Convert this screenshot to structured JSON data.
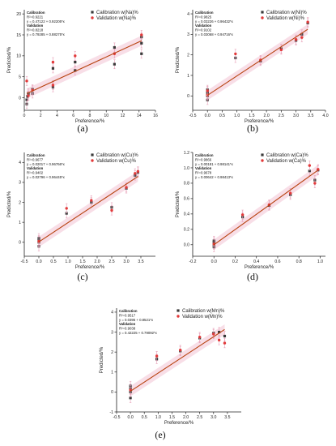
{
  "colors": {
    "calibration": "#3a3a3a",
    "validation": "#e23a3a",
    "fit_line": "#b7410e",
    "band": "#f3c2d4",
    "error_bar": "#e8a0b8"
  },
  "chart_data": [
    {
      "id": "a",
      "type": "scatter",
      "panel_label": "(a)",
      "xlabel": "Preference/%",
      "ylabel": "Predicted/%",
      "xlim": [
        0,
        16
      ],
      "ylim": [
        -3,
        21
      ],
      "xticks": [
        0,
        2,
        4,
        6,
        8,
        10,
        12,
        14,
        16
      ],
      "yticks": [
        0,
        5,
        10,
        15,
        20
      ],
      "legend_position": "top-right",
      "series": [
        {
          "name": "Calibration w(Na)%",
          "role": "calibration",
          "points": [
            [
              0.3,
              -1.5
            ],
            [
              0.3,
              -0.5
            ],
            [
              0.4,
              0.3
            ],
            [
              0.5,
              1.0
            ],
            [
              1.0,
              1.0
            ],
            [
              1.0,
              2.0
            ],
            [
              3.5,
              2.5
            ],
            [
              3.5,
              7.0
            ],
            [
              6.2,
              6.5
            ],
            [
              6.2,
              8.5
            ],
            [
              11,
              8.0
            ],
            [
              11,
              12.0
            ],
            [
              14.3,
              10.5
            ],
            [
              14.3,
              13.0
            ],
            [
              14.3,
              14.5
            ]
          ]
        },
        {
          "name": "Validation w(Na)%",
          "role": "validation",
          "points": [
            [
              0.3,
              4.0
            ],
            [
              0.5,
              0.5
            ],
            [
              1.0,
              1.8
            ],
            [
              3.5,
              3.0
            ],
            [
              3.5,
              8.5
            ],
            [
              6.2,
              10.0
            ],
            [
              11,
              10.5
            ],
            [
              14.3,
              15.0
            ]
          ]
        }
      ],
      "fit_line": [
        [
          0.3,
          1.0
        ],
        [
          14.3,
          13.6
        ]
      ],
      "annotations": [
        {
          "text": "Calibration",
          "bold": true
        },
        {
          "text": "R²=0.9221"
        },
        {
          "text": "y = 0.47122 + 0.92205*x"
        },
        {
          "text": "Validation",
          "bold": true
        },
        {
          "text": "R²=0.8218"
        },
        {
          "text": "y = 0.79285 + 0.88275*x"
        }
      ]
    },
    {
      "id": "b",
      "type": "scatter",
      "panel_label": "(b)",
      "xlabel": "Preference/%",
      "ylabel": "Predicted/%",
      "xlim": [
        -0.5,
        4
      ],
      "ylim": [
        -0.7,
        4.2
      ],
      "xticks": [
        -0.5,
        0.0,
        0.5,
        1.0,
        1.5,
        2.0,
        2.5,
        3.0,
        3.5,
        4.0
      ],
      "yticks": [
        0,
        1,
        2,
        3,
        4
      ],
      "legend_position": "top-right",
      "series": [
        {
          "name": "Calibration w(Ni)%",
          "role": "calibration",
          "points": [
            [
              0,
              -0.2
            ],
            [
              0,
              0
            ],
            [
              0,
              0.1
            ],
            [
              0,
              0.2
            ],
            [
              0,
              0.3
            ],
            [
              0.95,
              1.85
            ],
            [
              1.8,
              1.7
            ],
            [
              2.5,
              2.3
            ],
            [
              3.0,
              2.7
            ],
            [
              3.2,
              3.0
            ],
            [
              3.4,
              3.55
            ]
          ]
        },
        {
          "name": "Validation w(Ni)%",
          "role": "validation",
          "points": [
            [
              0,
              0.05
            ],
            [
              0,
              0.25
            ],
            [
              0.95,
              2.05
            ],
            [
              1.8,
              1.75
            ],
            [
              2.5,
              2.25
            ],
            [
              3.0,
              2.75
            ],
            [
              3.2,
              2.85
            ],
            [
              3.4,
              3.6
            ]
          ]
        }
      ],
      "fit_line": [
        [
          0,
          0.03
        ],
        [
          3.4,
          3.25
        ]
      ],
      "annotations": [
        {
          "text": "Calibration",
          "bold": true
        },
        {
          "text": "R²=0.9825"
        },
        {
          "text": "y = 0.03226 + 0.96432*x"
        },
        {
          "text": "Validation",
          "bold": true
        },
        {
          "text": "R²=0.9102"
        },
        {
          "text": "y = 0.03068 + 0.94716*x"
        }
      ]
    },
    {
      "id": "c",
      "type": "scatter",
      "panel_label": "(c)",
      "xlabel": "Preference/%",
      "ylabel": "Predicted/%",
      "xlim": [
        -0.5,
        4
      ],
      "ylim": [
        -0.7,
        4.5
      ],
      "xticks": [
        -0.5,
        0.0,
        0.5,
        1.0,
        1.5,
        2.0,
        2.5,
        3.0,
        3.5
      ],
      "yticks": [
        0,
        1,
        2,
        3,
        4
      ],
      "legend_position": "top-right",
      "series": [
        {
          "name": "Calibration w(Cu)%",
          "role": "calibration",
          "points": [
            [
              0,
              -0.2
            ],
            [
              0,
              0
            ],
            [
              0,
              0.1
            ],
            [
              0,
              0.2
            ],
            [
              0.95,
              1.45
            ],
            [
              1.8,
              2.0
            ],
            [
              2.5,
              1.75
            ],
            [
              3.0,
              2.7
            ],
            [
              3.3,
              3.35
            ],
            [
              3.4,
              3.5
            ]
          ]
        },
        {
          "name": "Validation w(Cu)%",
          "role": "validation",
          "points": [
            [
              0,
              0.05
            ],
            [
              0.95,
              1.7
            ],
            [
              1.8,
              2.1
            ],
            [
              2.5,
              1.6
            ],
            [
              3.0,
              2.75
            ],
            [
              3.3,
              3.45
            ],
            [
              3.4,
              3.55
            ]
          ]
        }
      ],
      "fit_line": [
        [
          0,
          0.02
        ],
        [
          3.4,
          3.3
        ]
      ],
      "annotations": [
        {
          "text": "Calibration",
          "bold": true
        },
        {
          "text": "R²=0.9677"
        },
        {
          "text": "y = 0.02017 + 0.96766*x"
        },
        {
          "text": "Validation",
          "bold": true
        },
        {
          "text": "R²=0.9402"
        },
        {
          "text": "y = 0.02796 + 0.96445*x"
        }
      ]
    },
    {
      "id": "d",
      "type": "scatter",
      "panel_label": "(d)",
      "xlabel": "Preference/%",
      "ylabel": "Predicted/%",
      "xlim": [
        -0.2,
        1.05
      ],
      "ylim": [
        -0.15,
        1.2
      ],
      "xticks": [
        -0.2,
        0.0,
        0.2,
        0.4,
        0.6,
        0.8,
        1.0
      ],
      "yticks": [
        0.0,
        0.2,
        0.4,
        0.6,
        0.8,
        1.0,
        1.2
      ],
      "legend_position": "top-right",
      "series": [
        {
          "name": "Calibration w(Ca)%",
          "role": "calibration",
          "points": [
            [
              0,
              -0.03
            ],
            [
              0,
              0
            ],
            [
              0,
              0.03
            ],
            [
              0,
              0.05
            ],
            [
              0.27,
              0.36
            ],
            [
              0.52,
              0.51
            ],
            [
              0.72,
              0.65
            ],
            [
              0.9,
              0.96
            ],
            [
              0.95,
              0.84
            ],
            [
              0.98,
              0.97
            ]
          ]
        },
        {
          "name": "Validation w(Ca)%",
          "role": "validation",
          "points": [
            [
              0,
              0.01
            ],
            [
              0.27,
              0.39
            ],
            [
              0.52,
              0.52
            ],
            [
              0.72,
              0.67
            ],
            [
              0.9,
              1.03
            ],
            [
              0.95,
              0.8
            ],
            [
              0.98,
              0.98
            ]
          ]
        }
      ],
      "fit_line": [
        [
          0,
          0.0
        ],
        [
          0.98,
          0.97
        ]
      ],
      "annotations": [
        {
          "text": "Calibration",
          "bold": true
        },
        {
          "text": "R²=0.9866"
        },
        {
          "text": "y = 0.00181 + 0.98141*x"
        },
        {
          "text": "Validation",
          "bold": true
        },
        {
          "text": "R²=0.9678"
        },
        {
          "text": "y = 0.00642 + 0.98413*x"
        }
      ]
    },
    {
      "id": "e",
      "type": "scatter",
      "panel_label": "(e)",
      "xlabel": "Preference/%",
      "ylabel": "Predicted/%",
      "xlim": [
        -0.5,
        4
      ],
      "ylim": [
        -1,
        4.2
      ],
      "xticks": [
        -0.5,
        0.0,
        0.5,
        1.0,
        1.5,
        2.0,
        2.5,
        3.0,
        3.5
      ],
      "yticks": [
        -1,
        0,
        1,
        2,
        3,
        4
      ],
      "legend_position": "top-right",
      "series": [
        {
          "name": "Calibration w(Mn)%",
          "role": "calibration",
          "points": [
            [
              0,
              -0.3
            ],
            [
              0,
              0
            ],
            [
              0,
              0.15
            ],
            [
              0,
              0.3
            ],
            [
              0.95,
              1.65
            ],
            [
              1.8,
              2.05
            ],
            [
              2.5,
              2.7
            ],
            [
              3.0,
              2.95
            ],
            [
              3.2,
              3.0
            ],
            [
              3.4,
              2.8
            ]
          ]
        },
        {
          "name": "Validation w(Mn)%",
          "role": "validation",
          "points": [
            [
              0,
              0.1
            ],
            [
              0.95,
              1.8
            ],
            [
              1.8,
              2.1
            ],
            [
              2.5,
              2.75
            ],
            [
              3.0,
              2.9
            ],
            [
              3.2,
              2.6
            ],
            [
              3.4,
              2.45
            ]
          ]
        }
      ],
      "fit_line": [
        [
          0,
          0.04
        ],
        [
          3.4,
          3.13
        ]
      ],
      "annotations": [
        {
          "text": "Calibration",
          "bold": true
        },
        {
          "text": "R²=0.9517"
        },
        {
          "text": "y = 0.0395 + 0.8521*x"
        },
        {
          "text": "Validation",
          "bold": true
        },
        {
          "text": "R²=0.9038"
        },
        {
          "text": "y = 0.42225 + 0.79092*x"
        }
      ]
    }
  ]
}
